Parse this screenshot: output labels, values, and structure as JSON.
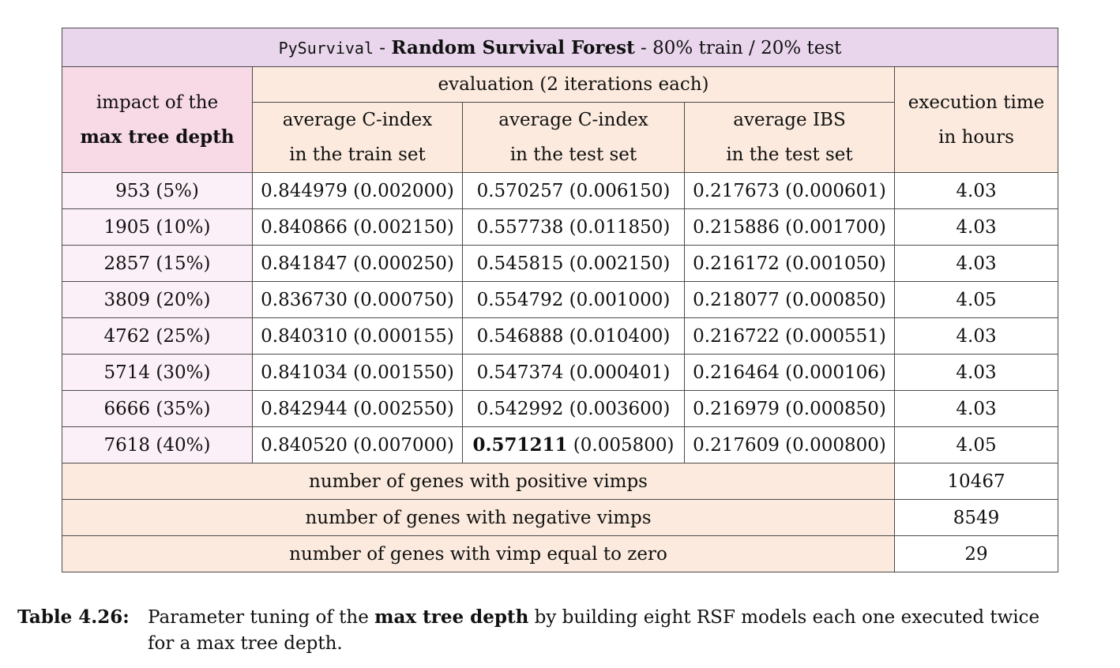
{
  "table": {
    "title": {
      "library": "PySurvival",
      "sep1": " - ",
      "model": "Random Survival Forest",
      "sep2": " - ",
      "split": "80% train / 20% test"
    },
    "header": {
      "first_col_line1": "impact of the",
      "first_col_line2": "max tree depth",
      "evaluation": "evaluation (2 iterations each)",
      "col_train_line1": "average C-index",
      "col_train_line2": "in the train set",
      "col_test_line1": "average C-index",
      "col_test_line2": "in the test set",
      "col_ibs_line1": "average IBS",
      "col_ibs_line2": "in the test set",
      "exec_line1": "execution time",
      "exec_line2": "in hours"
    },
    "rows": [
      {
        "depth": "953 (5%)",
        "train": "0.844979 (0.002000)",
        "test_val": "0.570257",
        "test_sd": " (0.006150)",
        "ibs": "0.217673 (0.000601)",
        "time": "4.03"
      },
      {
        "depth": "1905 (10%)",
        "train": "0.840866 (0.002150)",
        "test_val": "0.557738",
        "test_sd": " (0.011850)",
        "ibs": "0.215886 (0.001700)",
        "time": "4.03"
      },
      {
        "depth": "2857 (15%)",
        "train": "0.841847 (0.000250)",
        "test_val": "0.545815",
        "test_sd": " (0.002150)",
        "ibs": "0.216172 (0.001050)",
        "time": "4.03"
      },
      {
        "depth": "3809 (20%)",
        "train": "0.836730 (0.000750)",
        "test_val": "0.554792",
        "test_sd": " (0.001000)",
        "ibs": "0.218077 (0.000850)",
        "time": "4.05"
      },
      {
        "depth": "4762 (25%)",
        "train": "0.840310 (0.000155)",
        "test_val": "0.546888",
        "test_sd": " (0.010400)",
        "ibs": "0.216722 (0.000551)",
        "time": "4.03"
      },
      {
        "depth": "5714 (30%)",
        "train": "0.841034 (0.001550)",
        "test_val": "0.547374",
        "test_sd": " (0.000401)",
        "ibs": "0.216464 (0.000106)",
        "time": "4.03"
      },
      {
        "depth": "6666 (35%)",
        "train": "0.842944 (0.002550)",
        "test_val": "0.542992",
        "test_sd": " (0.003600)",
        "ibs": "0.216979 (0.000850)",
        "time": "4.03"
      },
      {
        "depth": "7618 (40%)",
        "train": "0.840520 (0.007000)",
        "test_val": "0.571211",
        "test_sd": " (0.005800)",
        "ibs": "0.217609 (0.000800)",
        "time": "4.05",
        "best": true
      }
    ],
    "footer": [
      {
        "label": "number of genes with positive vimps",
        "value": "10467"
      },
      {
        "label": "number of genes with negative vimps",
        "value": "8549"
      },
      {
        "label": "number of genes with vimp equal to zero",
        "value": "29"
      }
    ]
  },
  "caption": {
    "label": "Table 4.26:",
    "text_before": "Parameter tuning of the ",
    "text_bold": "max tree depth",
    "text_after_line1": " by building eight RSF models each one executed twice",
    "text_line2": "for a max tree depth."
  }
}
